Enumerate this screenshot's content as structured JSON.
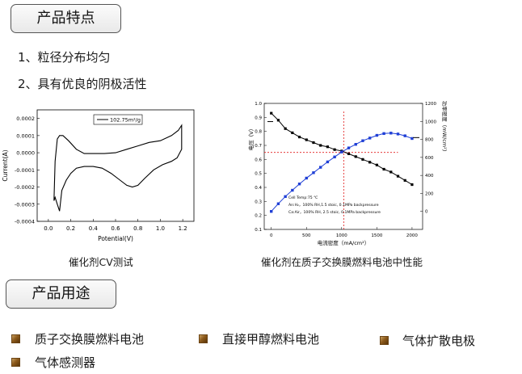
{
  "sections": {
    "features_title": "产品特点",
    "uses_title": "产品用途"
  },
  "features": [
    "1、粒径分布均匀",
    "2、具有优良的阴极活性"
  ],
  "captions": {
    "cv": "催化剂CV测试",
    "fuel_cell": "催化剂在质子交换膜燃料电池中性能"
  },
  "uses": [
    "质子交换膜燃料电池",
    "直接甲醇燃料电池",
    "气体扩散电极",
    "气体感测器"
  ],
  "chart_data": [
    {
      "type": "line",
      "xlabel": "Potential(V)",
      "ylabel": "Current(A)",
      "xlim": [
        -0.1,
        1.3
      ],
      "ylim": [
        -0.0004,
        0.00025
      ],
      "x_ticks": [
        "0.0",
        "0.2",
        "0.4",
        "0.6",
        "0.8",
        "1.0",
        "1.2"
      ],
      "y_ticks": [
        "0.0002",
        "0.0001",
        "0.0000",
        "-0.0001",
        "-0.0002",
        "-0.0003",
        "-0.0004"
      ],
      "legend": [
        "102.75m²/g"
      ],
      "legend_position": "top-right",
      "series": [
        {
          "name": "102.75m²/g",
          "x": [
            0.05,
            0.06,
            0.08,
            0.1,
            0.13,
            0.18,
            0.25,
            0.32,
            0.4,
            0.5,
            0.6,
            0.7,
            0.8,
            0.9,
            1.0,
            1.1,
            1.16,
            1.19,
            1.19,
            1.15,
            1.1,
            1.02,
            0.94,
            0.86,
            0.8,
            0.75,
            0.7,
            0.64,
            0.56,
            0.48,
            0.4,
            0.32,
            0.25,
            0.2,
            0.16,
            0.12,
            0.11,
            0.1,
            0.08,
            0.06,
            0.05
          ],
          "y": [
            -0.00028,
            -5e-05,
            8e-05,
            0.0001,
            0.0001,
            7e-05,
            2e-05,
            -5e-06,
            -5e-06,
            -5e-06,
            0.0,
            2e-05,
            4e-05,
            6e-05,
            7e-05,
            0.0001,
            0.00013,
            0.00016,
            2e-05,
            -3e-05,
            -5e-05,
            -7e-05,
            -0.0001,
            -0.00015,
            -0.00019,
            -0.0002,
            -0.00019,
            -0.00016,
            -0.00012,
            -9e-05,
            -8e-05,
            -8e-05,
            -9e-05,
            -0.00012,
            -0.00016,
            -0.00022,
            -0.00028,
            -0.00034,
            -0.0003,
            -0.00026,
            -0.00028
          ]
        }
      ]
    },
    {
      "type": "line",
      "xlabel": "电流密度（mA/cm²）",
      "ylabel": "电压（V）",
      "y2label": "功率密度（mW/cm²）",
      "xlim": [
        -100,
        2150
      ],
      "ylim": [
        0.1,
        1.0
      ],
      "y2lim": [
        -200,
        1200
      ],
      "x_ticks": [
        "0",
        "500",
        "1000",
        "1500",
        "2000"
      ],
      "y_ticks": [
        "0.1",
        "0.2",
        "0.3",
        "0.4",
        "0.5",
        "0.6",
        "0.7",
        "0.8",
        "0.9",
        "1.0"
      ],
      "y2_ticks": [
        "0",
        "200",
        "400",
        "600",
        "800",
        "1000",
        "1200"
      ],
      "annotations": [
        "Cell Temp:75 ℃",
        "An:H₂，100% RH,1.5 stoic, 0.1MPa backpressure",
        "Ca:Air，100% RH, 2.5 stoic, 0.1MPa backpressure"
      ],
      "series": [
        {
          "axis": "left",
          "color": "#000000",
          "x": [
            0,
            100,
            200,
            300,
            400,
            500,
            600,
            700,
            800,
            900,
            1000,
            1100,
            1200,
            1300,
            1400,
            1500,
            1600,
            1700,
            1800,
            1900,
            2000
          ],
          "y": [
            0.93,
            0.88,
            0.82,
            0.79,
            0.76,
            0.74,
            0.72,
            0.7,
            0.69,
            0.67,
            0.66,
            0.64,
            0.62,
            0.6,
            0.58,
            0.56,
            0.53,
            0.51,
            0.48,
            0.45,
            0.42
          ]
        },
        {
          "axis": "right",
          "color": "#1f3fd6",
          "x": [
            0,
            100,
            200,
            300,
            400,
            500,
            600,
            700,
            800,
            900,
            1000,
            1100,
            1200,
            1300,
            1400,
            1500,
            1600,
            1700,
            1800,
            1900,
            2000
          ],
          "y": [
            0,
            85,
            165,
            235,
            305,
            370,
            430,
            490,
            550,
            605,
            660,
            705,
            745,
            785,
            815,
            845,
            865,
            870,
            860,
            840,
            810
          ]
        }
      ]
    }
  ]
}
